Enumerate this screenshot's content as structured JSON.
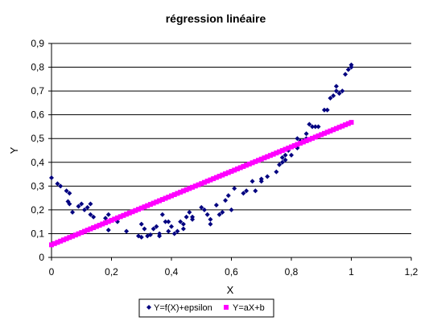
{
  "chart_data": {
    "type": "scatter",
    "title": "régression linéaire",
    "xlabel": "X",
    "ylabel": "Y",
    "xlim": [
      0,
      1.2
    ],
    "ylim": [
      0,
      0.9
    ],
    "grid": "horizontal",
    "legend_position": "bottom",
    "x_ticks": [
      "0",
      "0,2",
      "0,4",
      "0,6",
      "0,8",
      "1",
      "1,2"
    ],
    "y_ticks": [
      "0",
      "0,1",
      "0,2",
      "0,3",
      "0,4",
      "0,5",
      "0,6",
      "0,7",
      "0,8",
      "0,9"
    ],
    "series": [
      {
        "name": "Y=f(X)+epsilon",
        "color": "#000080",
        "marker": "diamond",
        "points": [
          [
            0.0,
            0.335
          ],
          [
            0.02,
            0.31
          ],
          [
            0.03,
            0.3
          ],
          [
            0.05,
            0.28
          ],
          [
            0.06,
            0.27
          ],
          [
            0.055,
            0.235
          ],
          [
            0.06,
            0.225
          ],
          [
            0.07,
            0.19
          ],
          [
            0.09,
            0.215
          ],
          [
            0.1,
            0.225
          ],
          [
            0.11,
            0.2
          ],
          [
            0.12,
            0.21
          ],
          [
            0.13,
            0.225
          ],
          [
            0.13,
            0.18
          ],
          [
            0.14,
            0.17
          ],
          [
            0.18,
            0.165
          ],
          [
            0.19,
            0.18
          ],
          [
            0.19,
            0.115
          ],
          [
            0.22,
            0.15
          ],
          [
            0.25,
            0.11
          ],
          [
            0.29,
            0.09
          ],
          [
            0.3,
            0.14
          ],
          [
            0.3,
            0.085
          ],
          [
            0.31,
            0.12
          ],
          [
            0.32,
            0.09
          ],
          [
            0.33,
            0.095
          ],
          [
            0.34,
            0.12
          ],
          [
            0.35,
            0.13
          ],
          [
            0.36,
            0.1
          ],
          [
            0.36,
            0.09
          ],
          [
            0.37,
            0.18
          ],
          [
            0.38,
            0.15
          ],
          [
            0.39,
            0.15
          ],
          [
            0.39,
            0.11
          ],
          [
            0.4,
            0.13
          ],
          [
            0.41,
            0.1
          ],
          [
            0.42,
            0.11
          ],
          [
            0.43,
            0.15
          ],
          [
            0.44,
            0.14
          ],
          [
            0.44,
            0.12
          ],
          [
            0.45,
            0.17
          ],
          [
            0.46,
            0.19
          ],
          [
            0.47,
            0.17
          ],
          [
            0.47,
            0.16
          ],
          [
            0.5,
            0.21
          ],
          [
            0.51,
            0.2
          ],
          [
            0.52,
            0.18
          ],
          [
            0.53,
            0.16
          ],
          [
            0.53,
            0.14
          ],
          [
            0.55,
            0.22
          ],
          [
            0.56,
            0.18
          ],
          [
            0.57,
            0.19
          ],
          [
            0.58,
            0.24
          ],
          [
            0.59,
            0.26
          ],
          [
            0.6,
            0.2
          ],
          [
            0.61,
            0.29
          ],
          [
            0.64,
            0.27
          ],
          [
            0.65,
            0.28
          ],
          [
            0.67,
            0.32
          ],
          [
            0.68,
            0.28
          ],
          [
            0.7,
            0.33
          ],
          [
            0.7,
            0.32
          ],
          [
            0.72,
            0.34
          ],
          [
            0.75,
            0.36
          ],
          [
            0.76,
            0.39
          ],
          [
            0.77,
            0.4
          ],
          [
            0.77,
            0.42
          ],
          [
            0.78,
            0.43
          ],
          [
            0.78,
            0.41
          ],
          [
            0.79,
            0.45
          ],
          [
            0.8,
            0.43
          ],
          [
            0.81,
            0.47
          ],
          [
            0.82,
            0.5
          ],
          [
            0.82,
            0.46
          ],
          [
            0.83,
            0.49
          ],
          [
            0.84,
            0.49
          ],
          [
            0.85,
            0.5
          ],
          [
            0.85,
            0.52
          ],
          [
            0.86,
            0.56
          ],
          [
            0.87,
            0.55
          ],
          [
            0.88,
            0.55
          ],
          [
            0.89,
            0.55
          ],
          [
            0.91,
            0.62
          ],
          [
            0.92,
            0.62
          ],
          [
            0.93,
            0.67
          ],
          [
            0.94,
            0.68
          ],
          [
            0.95,
            0.72
          ],
          [
            0.95,
            0.7
          ],
          [
            0.96,
            0.69
          ],
          [
            0.97,
            0.7
          ],
          [
            0.98,
            0.77
          ],
          [
            0.99,
            0.79
          ],
          [
            1.0,
            0.8
          ],
          [
            1.0,
            0.81
          ]
        ]
      },
      {
        "name": "Y=aX+b",
        "color": "#ff00ff",
        "marker": "square",
        "line": {
          "slope": 0.515,
          "intercept": 0.053,
          "x_start": 0.0,
          "x_end": 1.0,
          "step": 0.01
        }
      }
    ]
  }
}
